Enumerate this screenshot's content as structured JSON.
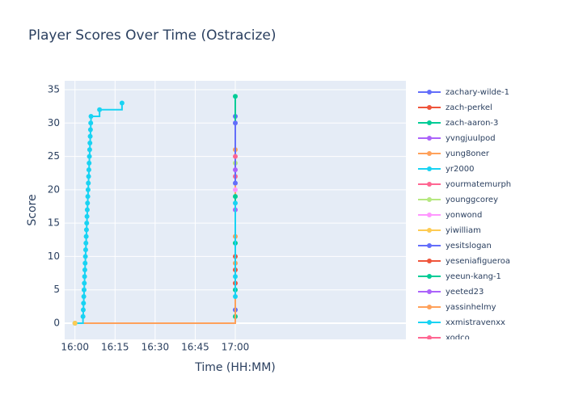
{
  "chart_data": {
    "type": "line",
    "title": "Player Scores Over Time (Ostracize)",
    "x_label": "Time (HH:MM)",
    "y_label": "Score",
    "line_shape": "hv",
    "grid": true,
    "xlim": [
      956.15,
      1083.85
    ],
    "xticks": [
      {
        "value": 960,
        "label": "16:00"
      },
      {
        "value": 975,
        "label": "16:15"
      },
      {
        "value": 990,
        "label": "16:30"
      },
      {
        "value": 1005,
        "label": "16:45"
      },
      {
        "value": 1020,
        "label": "17:00"
      }
    ],
    "ylim": [
      -2.42,
      36.33
    ],
    "yticks": [
      0,
      5,
      10,
      15,
      20,
      25,
      30,
      35
    ],
    "series": [
      {
        "name": "zachary-wilde-1",
        "color": "#636efa",
        "x": [
          1020,
          1020
        ],
        "values": [
          2,
          31
        ]
      },
      {
        "name": "zach-perkel",
        "color": "#EF553B",
        "x": [
          1020,
          1020
        ],
        "values": [
          6,
          10
        ]
      },
      {
        "name": "zach-aaron-3",
        "color": "#00cc96",
        "x": [
          1020,
          1020
        ],
        "values": [
          1,
          34
        ]
      },
      {
        "name": "yvngjuulpod",
        "color": "#ab63fa",
        "x": [
          1020
        ],
        "values": [
          17
        ]
      },
      {
        "name": "yung8oner",
        "color": "#FFA15A",
        "x": [
          960,
          1020,
          1020
        ],
        "values": [
          0,
          13,
          26
        ]
      },
      {
        "name": "yr2000",
        "color": "#19d3f3",
        "x": [
          960,
          963.0,
          963.1,
          963.2,
          963.3,
          963.4,
          963.5,
          963.6,
          963.7,
          963.8,
          963.9,
          964.0,
          964.1,
          964.2,
          964.3,
          964.4,
          964.5,
          964.6,
          964.7,
          964.8,
          964.9,
          965.0,
          965.1,
          965.2,
          965.3,
          965.4,
          965.5,
          965.6,
          965.7,
          965.8,
          965.9,
          966.0,
          969.2,
          977.6
        ],
        "values": [
          0,
          1,
          2,
          3,
          4,
          5,
          6,
          7,
          8,
          9,
          10,
          11,
          12,
          13,
          14,
          15,
          16,
          17,
          18,
          19,
          20,
          21,
          22,
          23,
          24,
          25,
          26,
          27,
          28,
          29,
          30,
          31,
          32,
          33
        ]
      },
      {
        "name": "yourmatemurph",
        "color": "#FF6692",
        "x": [
          1020
        ],
        "values": [
          22
        ]
      },
      {
        "name": "younggcorey",
        "color": "#B6E880",
        "x": [
          1020
        ],
        "values": [
          24
        ]
      },
      {
        "name": "yonwond",
        "color": "#FF97FF",
        "x": [
          1020
        ],
        "values": [
          20
        ]
      },
      {
        "name": "yiwilliam",
        "color": "#FECB52",
        "x": [
          960
        ],
        "values": [
          0
        ]
      },
      {
        "name": "yesitslogan",
        "color": "#636efa",
        "x": [
          1020,
          1020
        ],
        "values": [
          21,
          30
        ]
      },
      {
        "name": "yeseniafigueroa",
        "color": "#EF553B",
        "x": [
          1020
        ],
        "values": [
          8
        ]
      },
      {
        "name": "yeeun-kang-1",
        "color": "#00cc96",
        "x": [
          1020,
          1020,
          1020
        ],
        "values": [
          5,
          12,
          19
        ]
      },
      {
        "name": "yeeted23",
        "color": "#ab63fa",
        "x": [
          1020
        ],
        "values": [
          23
        ]
      },
      {
        "name": "yassinhelmy",
        "color": "#FFA15A",
        "x": [
          1020
        ],
        "values": [
          9
        ]
      },
      {
        "name": "xxmistravenxx",
        "color": "#19d3f3",
        "x": [
          1020,
          1020,
          1020
        ],
        "values": [
          4,
          7,
          18
        ]
      },
      {
        "name": "xodco",
        "color": "#FF6692",
        "x": [
          1020
        ],
        "values": [
          25
        ]
      }
    ]
  }
}
